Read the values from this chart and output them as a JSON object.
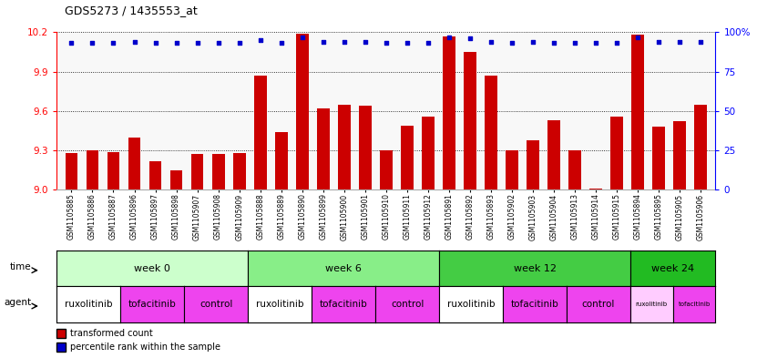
{
  "title": "GDS5273 / 1435553_at",
  "samples": [
    "GSM1105885",
    "GSM1105886",
    "GSM1105887",
    "GSM1105896",
    "GSM1105897",
    "GSM1105898",
    "GSM1105907",
    "GSM1105908",
    "GSM1105909",
    "GSM1105888",
    "GSM1105889",
    "GSM1105890",
    "GSM1105899",
    "GSM1105900",
    "GSM1105901",
    "GSM1105910",
    "GSM1105911",
    "GSM1105912",
    "GSM1105891",
    "GSM1105892",
    "GSM1105893",
    "GSM1105902",
    "GSM1105903",
    "GSM1105904",
    "GSM1105913",
    "GSM1105914",
    "GSM1105915",
    "GSM1105894",
    "GSM1105895",
    "GSM1105905",
    "GSM1105906"
  ],
  "bar_values": [
    9.28,
    9.3,
    9.29,
    9.4,
    9.22,
    9.15,
    9.27,
    9.27,
    9.28,
    9.87,
    9.44,
    10.19,
    9.62,
    9.65,
    9.64,
    9.3,
    9.49,
    9.56,
    10.17,
    10.05,
    9.87,
    9.3,
    9.38,
    9.53,
    9.3,
    9.01,
    9.56,
    10.18,
    9.48,
    9.52,
    9.65
  ],
  "percentile_values": [
    93,
    93,
    93,
    94,
    93,
    93,
    93,
    93,
    93,
    95,
    93,
    97,
    94,
    94,
    94,
    93,
    93,
    93,
    97,
    96,
    94,
    93,
    94,
    93,
    93,
    93,
    93,
    97,
    94,
    94,
    94
  ],
  "ymin": 9.0,
  "ymax": 10.2,
  "yticks": [
    9.0,
    9.3,
    9.6,
    9.9,
    10.2
  ],
  "y2ticks": [
    0,
    25,
    50,
    75,
    100
  ],
  "bar_color": "#cc0000",
  "dot_color": "#0000cc",
  "bg_color": "#f0f0f0",
  "time_groups": [
    {
      "label": "week 0",
      "start": 0,
      "end": 9,
      "color": "#ccffcc"
    },
    {
      "label": "week 6",
      "start": 9,
      "end": 18,
      "color": "#88ee88"
    },
    {
      "label": "week 12",
      "start": 18,
      "end": 27,
      "color": "#44cc44"
    },
    {
      "label": "week 24",
      "start": 27,
      "end": 31,
      "color": "#22bb22"
    }
  ],
  "agent_groups": [
    {
      "label": "ruxolitinib",
      "start": 0,
      "end": 3,
      "color": "#ffffff"
    },
    {
      "label": "tofacitinib",
      "start": 3,
      "end": 6,
      "color": "#ee44ee"
    },
    {
      "label": "control",
      "start": 6,
      "end": 9,
      "color": "#ee44ee"
    },
    {
      "label": "ruxolitinib",
      "start": 9,
      "end": 12,
      "color": "#ffffff"
    },
    {
      "label": "tofacitinib",
      "start": 12,
      "end": 15,
      "color": "#ee44ee"
    },
    {
      "label": "control",
      "start": 15,
      "end": 18,
      "color": "#ee44ee"
    },
    {
      "label": "ruxolitinib",
      "start": 18,
      "end": 21,
      "color": "#ffffff"
    },
    {
      "label": "tofacitinib",
      "start": 21,
      "end": 24,
      "color": "#ee44ee"
    },
    {
      "label": "control",
      "start": 24,
      "end": 27,
      "color": "#ee44ee"
    },
    {
      "label": "ruxolitinib",
      "start": 27,
      "end": 29,
      "color": "#ffccff"
    },
    {
      "label": "tofacitinib",
      "start": 29,
      "end": 31,
      "color": "#ee44ee"
    }
  ]
}
